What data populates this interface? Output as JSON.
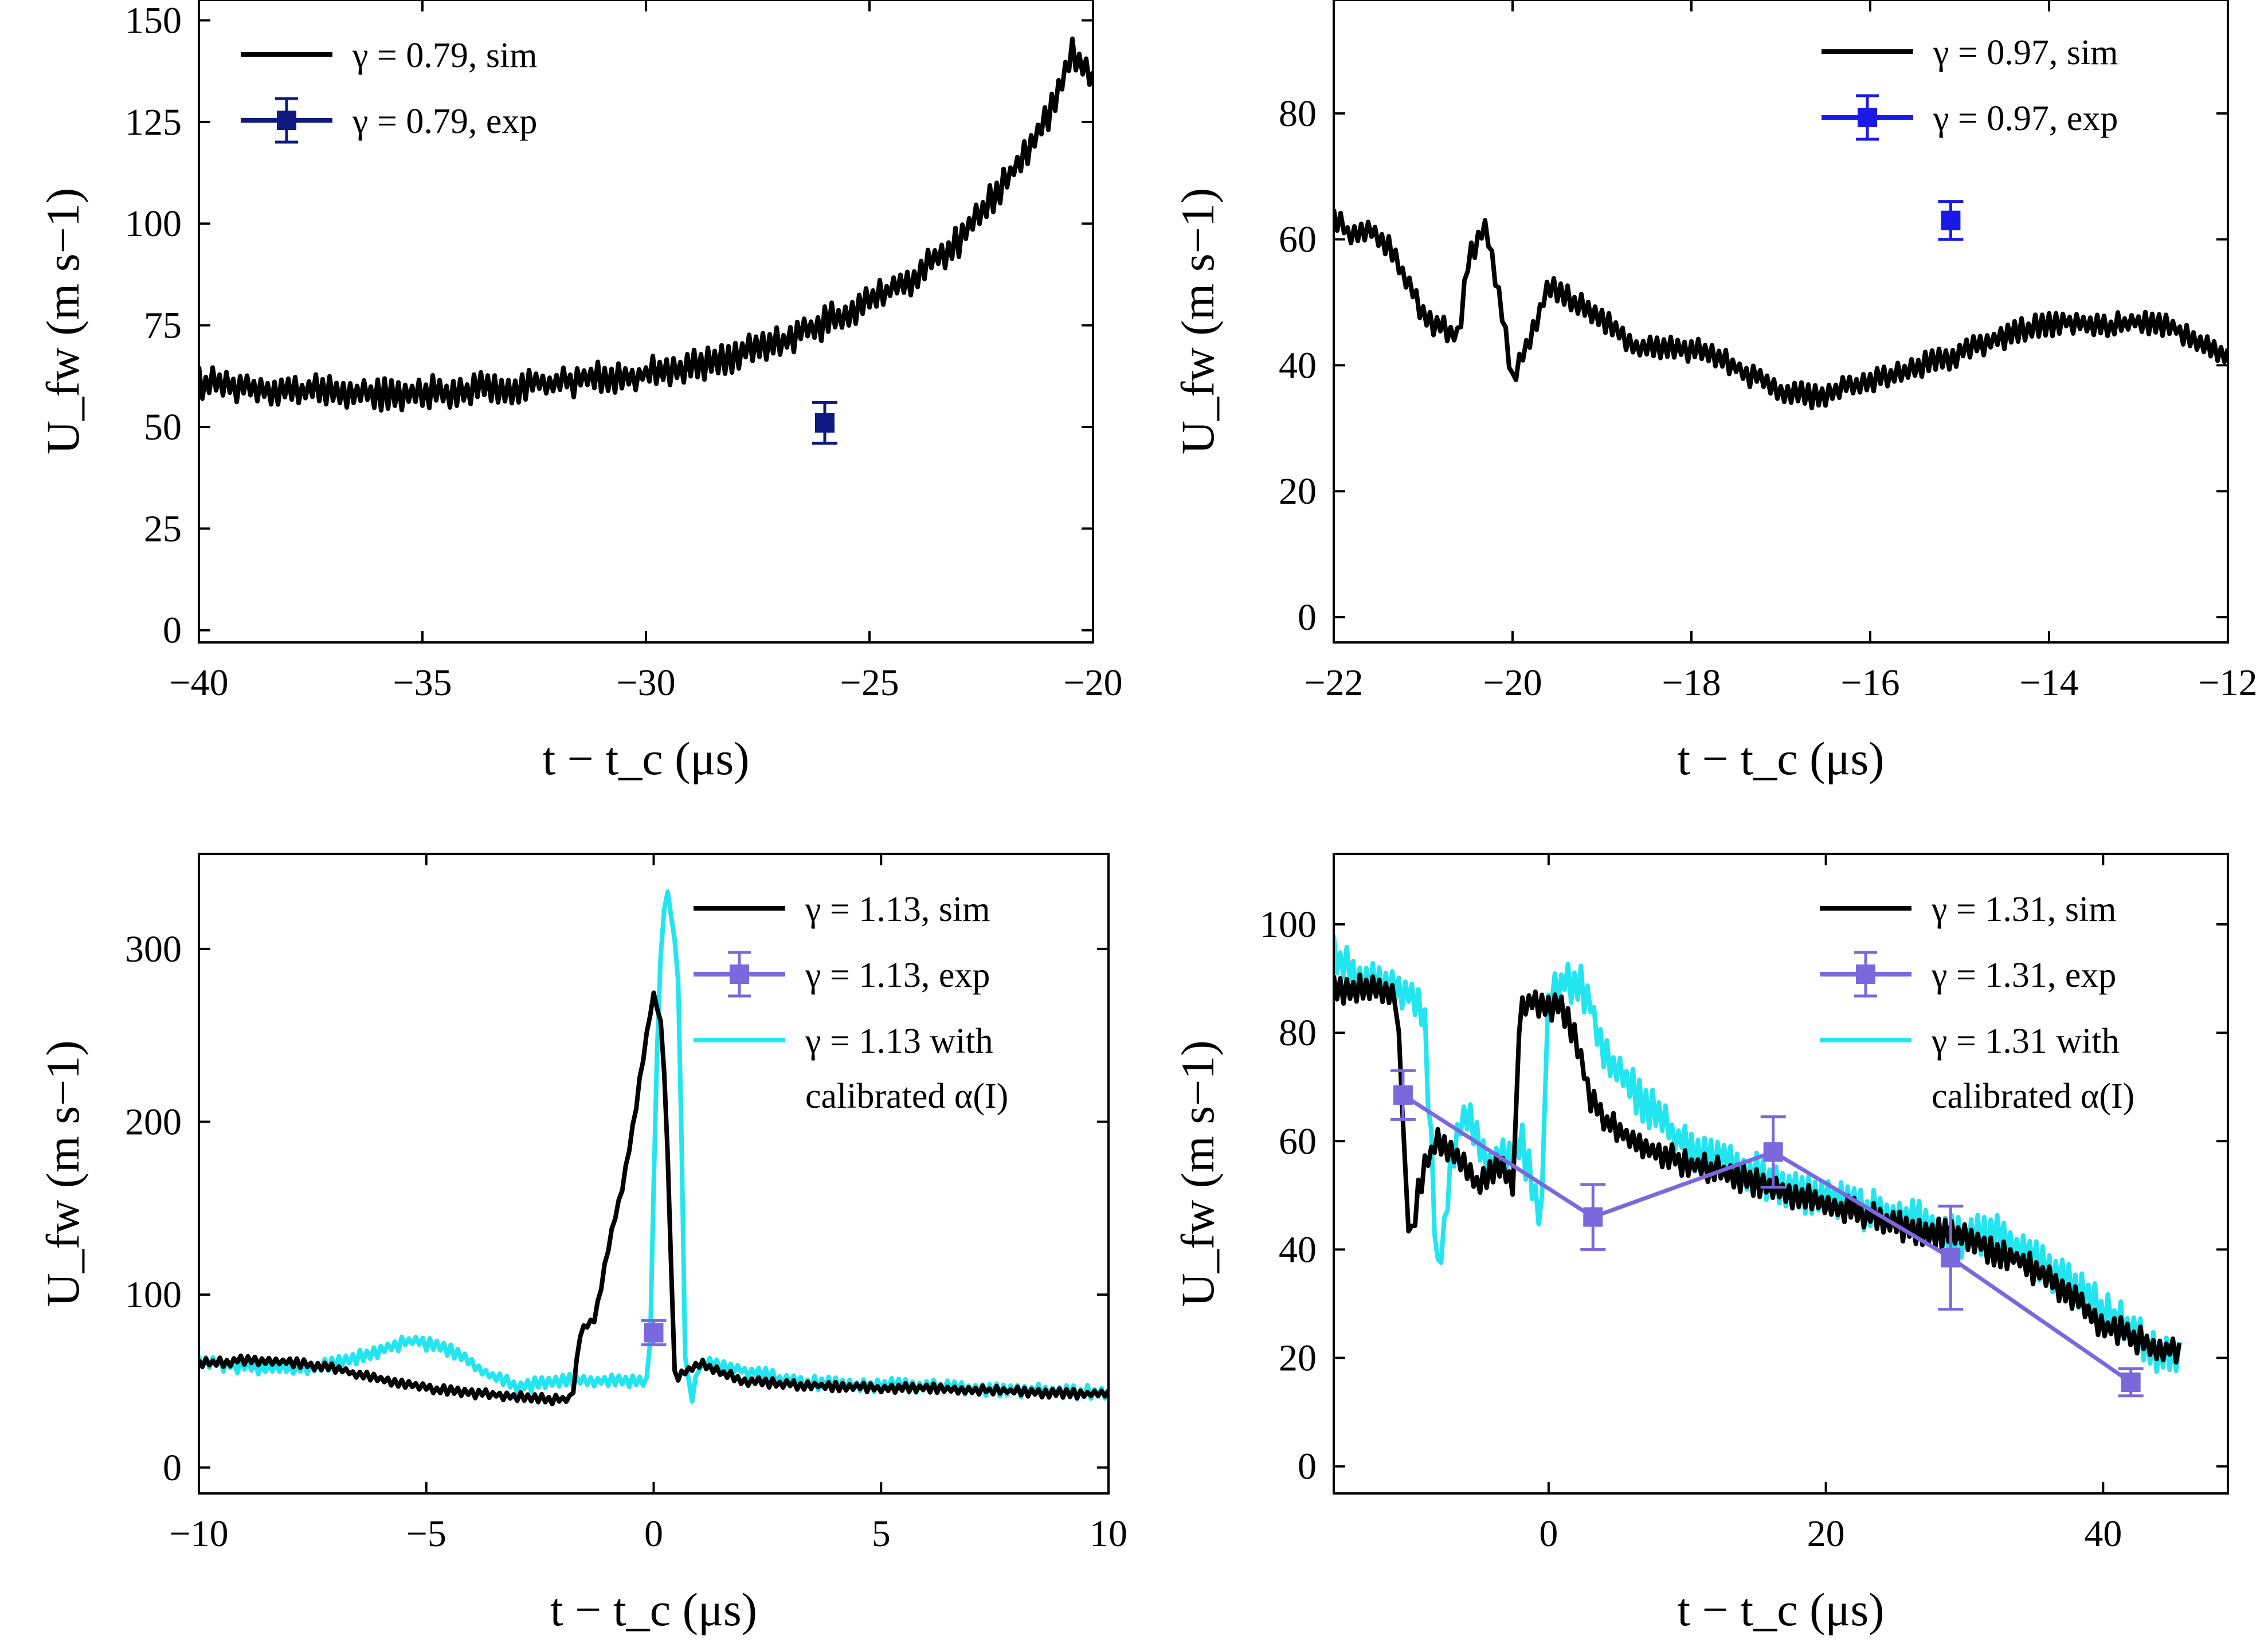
{
  "chart_data": [
    {
      "type": "line",
      "panel": "top-left",
      "xlabel": "t − t_c (μs)",
      "ylabel": "U_fw (m s−1)",
      "xlim": [
        -40,
        -20
      ],
      "ylim": [
        -3,
        155
      ],
      "xticks": [
        -40,
        -35,
        -30,
        -25,
        -20
      ],
      "xtick_labels": [
        "−40",
        "−35",
        "−30",
        "−25",
        "−20"
      ],
      "yticks": [
        0,
        25,
        50,
        75,
        100,
        125,
        150
      ],
      "ytick_labels": [
        "0",
        "25",
        "50",
        "75",
        "100",
        "125",
        "150"
      ],
      "legend_position": "top-left",
      "series": [
        {
          "name": "γ = 0.79, sim",
          "kind": "line",
          "color": "#000000",
          "noise": 3,
          "x": [
            -40,
            -38,
            -36,
            -34,
            -32,
            -30,
            -28.5,
            -27,
            -25.5,
            -24,
            -23,
            -22,
            -21,
            -20.5,
            -20
          ],
          "y": [
            61,
            59,
            58,
            59,
            61,
            63,
            66,
            71,
            78,
            87,
            96,
            110,
            126,
            142,
            136
          ]
        },
        {
          "name": "γ = 0.79, exp",
          "kind": "point",
          "color": "#0d1a80",
          "x": [
            -26
          ],
          "y": [
            51
          ],
          "err": [
            5
          ]
        }
      ]
    },
    {
      "type": "line",
      "panel": "top-right",
      "xlabel": "t − t_c (μs)",
      "ylabel": "U_fw (m s−1)",
      "xlim": [
        -22,
        -12
      ],
      "ylim": [
        -4,
        98
      ],
      "xticks": [
        -22,
        -20,
        -18,
        -16,
        -14,
        -12
      ],
      "xtick_labels": [
        "−22",
        "−20",
        "−18",
        "−16",
        "−14",
        "−12"
      ],
      "yticks": [
        0,
        20,
        40,
        60,
        80
      ],
      "ytick_labels": [
        "0",
        "20",
        "40",
        "60",
        "80"
      ],
      "legend_position": "top-right",
      "series": [
        {
          "name": "γ = 0.97, sim",
          "kind": "line",
          "color": "#000000",
          "noise": 1.5,
          "x": [
            -22,
            -21.8,
            -21.6,
            -21.4,
            -21.2,
            -21.0,
            -20.8,
            -20.6,
            -20.5,
            -20.3,
            -20.1,
            -20.0,
            -19.8,
            -19.6,
            -19.4,
            -19.0,
            -18.6,
            -18.2,
            -17.8,
            -17.4,
            -17.0,
            -16.6,
            -16.2,
            -15.8,
            -15.4,
            -15.0,
            -14.6,
            -14.2,
            -13.8,
            -13.4,
            -13.0,
            -12.6,
            -12.3,
            -12.0
          ],
          "y": [
            64,
            60,
            62,
            59,
            54,
            48,
            46,
            45,
            57,
            62,
            47,
            38,
            44,
            53,
            51,
            47,
            43,
            43,
            42,
            39,
            36,
            35,
            37,
            38,
            40,
            42,
            44,
            46,
            47,
            46,
            47,
            46,
            43,
            41
          ]
        },
        {
          "name": "γ = 0.97, exp",
          "kind": "point",
          "color": "#1a1ae6",
          "x": [
            -15.1
          ],
          "y": [
            63
          ],
          "err": [
            3
          ]
        }
      ]
    },
    {
      "type": "line",
      "panel": "bottom-left",
      "xlabel": "t − t_c (μs)",
      "ylabel": "U_fw (m s−1)",
      "xlim": [
        -10,
        10
      ],
      "ylim": [
        -15,
        355
      ],
      "xticks": [
        -10,
        -5,
        0,
        5,
        10
      ],
      "xtick_labels": [
        "−10",
        "−5",
        "0",
        "5",
        "10"
      ],
      "yticks": [
        0,
        100,
        200,
        300
      ],
      "ytick_labels": [
        "0",
        "100",
        "200",
        "300"
      ],
      "legend_position": "top-right",
      "series": [
        {
          "name": "γ = 1.13 with calibrated α(I)",
          "kind": "line",
          "color": "#22e5f0",
          "noise": 3,
          "x": [
            -10,
            -9,
            -8,
            -7,
            -6,
            -5.3,
            -4.5,
            -3.5,
            -3,
            -2,
            -1,
            -0.5,
            -0.1,
            0.1,
            0.25,
            0.4,
            0.55,
            0.7,
            0.85,
            1.0,
            1.3,
            2,
            3,
            4,
            5,
            6,
            7,
            8,
            9,
            10
          ],
          "y": [
            62,
            58,
            57,
            60,
            68,
            74,
            68,
            52,
            47,
            50,
            50,
            49,
            49,
            270,
            335,
            320,
            280,
            55,
            40,
            58,
            60,
            56,
            50,
            48,
            48,
            47,
            46,
            45,
            44,
            43
          ]
        },
        {
          "name": "γ = 1.13, sim",
          "kind": "line",
          "color": "#000000",
          "noise": 2,
          "x": [
            -10,
            -9,
            -8,
            -7,
            -6,
            -5,
            -4,
            -3,
            -2,
            -1.8,
            -1.6,
            -1.4,
            -1.3,
            -1.1,
            -0.9,
            -0.7,
            -0.5,
            -0.3,
            -0.1,
            0,
            0.1,
            0.2,
            0.35,
            0.45,
            0.55,
            0.7,
            0.9,
            1.1,
            1.5,
            2,
            3,
            4,
            5,
            6,
            7,
            8,
            9,
            10
          ],
          "y": [
            60,
            62,
            61,
            57,
            51,
            46,
            43,
            41,
            39,
            39,
            80,
            84,
            85,
            112,
            140,
            160,
            190,
            225,
            260,
            272,
            265,
            250,
            150,
            55,
            52,
            55,
            58,
            60,
            55,
            50,
            48,
            47,
            46,
            46,
            45,
            44,
            43,
            42
          ]
        },
        {
          "name": "γ = 1.13, exp",
          "kind": "point",
          "color": "#7b68dd",
          "x": [
            0
          ],
          "y": [
            78
          ],
          "err": [
            7
          ]
        }
      ]
    },
    {
      "type": "line",
      "panel": "bottom-right",
      "xlabel": "t − t_c (μs)",
      "ylabel": "U_fw (m s−1)",
      "xlim": [
        -15.5,
        49
      ],
      "ylim": [
        -5,
        113
      ],
      "xticks": [
        0,
        20,
        40
      ],
      "xtick_labels": [
        "0",
        "20",
        "40"
      ],
      "yticks": [
        0,
        20,
        40,
        60,
        80,
        100
      ],
      "ytick_labels": [
        "0",
        "20",
        "40",
        "60",
        "80",
        "100"
      ],
      "legend_position": "top-right",
      "series": [
        {
          "name": "γ = 1.31 with calibrated α(I)",
          "kind": "line",
          "color": "#22e5f0",
          "noise": 3,
          "x": [
            -15.5,
            -14,
            -12,
            -10,
            -9,
            -8.5,
            -8,
            -7.5,
            -7,
            -6,
            -5,
            -4,
            -3,
            -2,
            -1,
            -0.5,
            -0.1,
            0.3,
            1,
            2,
            3,
            4,
            6,
            8,
            10,
            14,
            18,
            22,
            26,
            30,
            32,
            34,
            36,
            38,
            40,
            42,
            44,
            45.5
          ],
          "y": [
            95,
            90,
            89,
            88,
            84,
            60,
            35,
            45,
            58,
            66,
            60,
            55,
            58,
            60,
            50,
            46,
            85,
            88,
            89,
            90,
            86,
            75,
            70,
            64,
            59,
            55,
            51,
            48,
            46,
            42,
            43,
            40,
            36,
            33,
            29,
            25,
            21,
            19
          ]
        },
        {
          "name": "γ = 1.31, sim",
          "kind": "line",
          "color": "#000000",
          "noise": 2,
          "x": [
            -15.5,
            -14,
            -12,
            -11,
            -10.6,
            -10.4,
            -10.1,
            -9.8,
            -9.5,
            -9,
            -8,
            -7,
            -6,
            -5,
            -4,
            -3,
            -2.5,
            -2.2,
            -2,
            -1.5,
            -1,
            0,
            1,
            2,
            3,
            4,
            6,
            8,
            10,
            14,
            18,
            22,
            26,
            30,
            34,
            38,
            40,
            42,
            44,
            45.5
          ],
          "y": [
            88,
            88,
            88,
            86,
            70,
            55,
            45,
            42,
            50,
            55,
            60,
            58,
            55,
            52,
            55,
            55,
            50,
            80,
            84,
            85,
            86,
            84,
            85,
            78,
            68,
            64,
            60,
            58,
            56,
            53,
            50,
            47,
            44,
            42,
            38,
            31,
            26,
            24,
            22,
            21
          ]
        },
        {
          "name": "γ = 1.31, exp",
          "kind": "point-line",
          "color": "#7b68dd",
          "x": [
            -10.5,
            3.2,
            16.2,
            29,
            42
          ],
          "y": [
            68.5,
            46,
            58,
            38.5,
            15.5
          ],
          "err": [
            4.5,
            6,
            6.5,
            9.5,
            2.5
          ]
        }
      ]
    }
  ]
}
